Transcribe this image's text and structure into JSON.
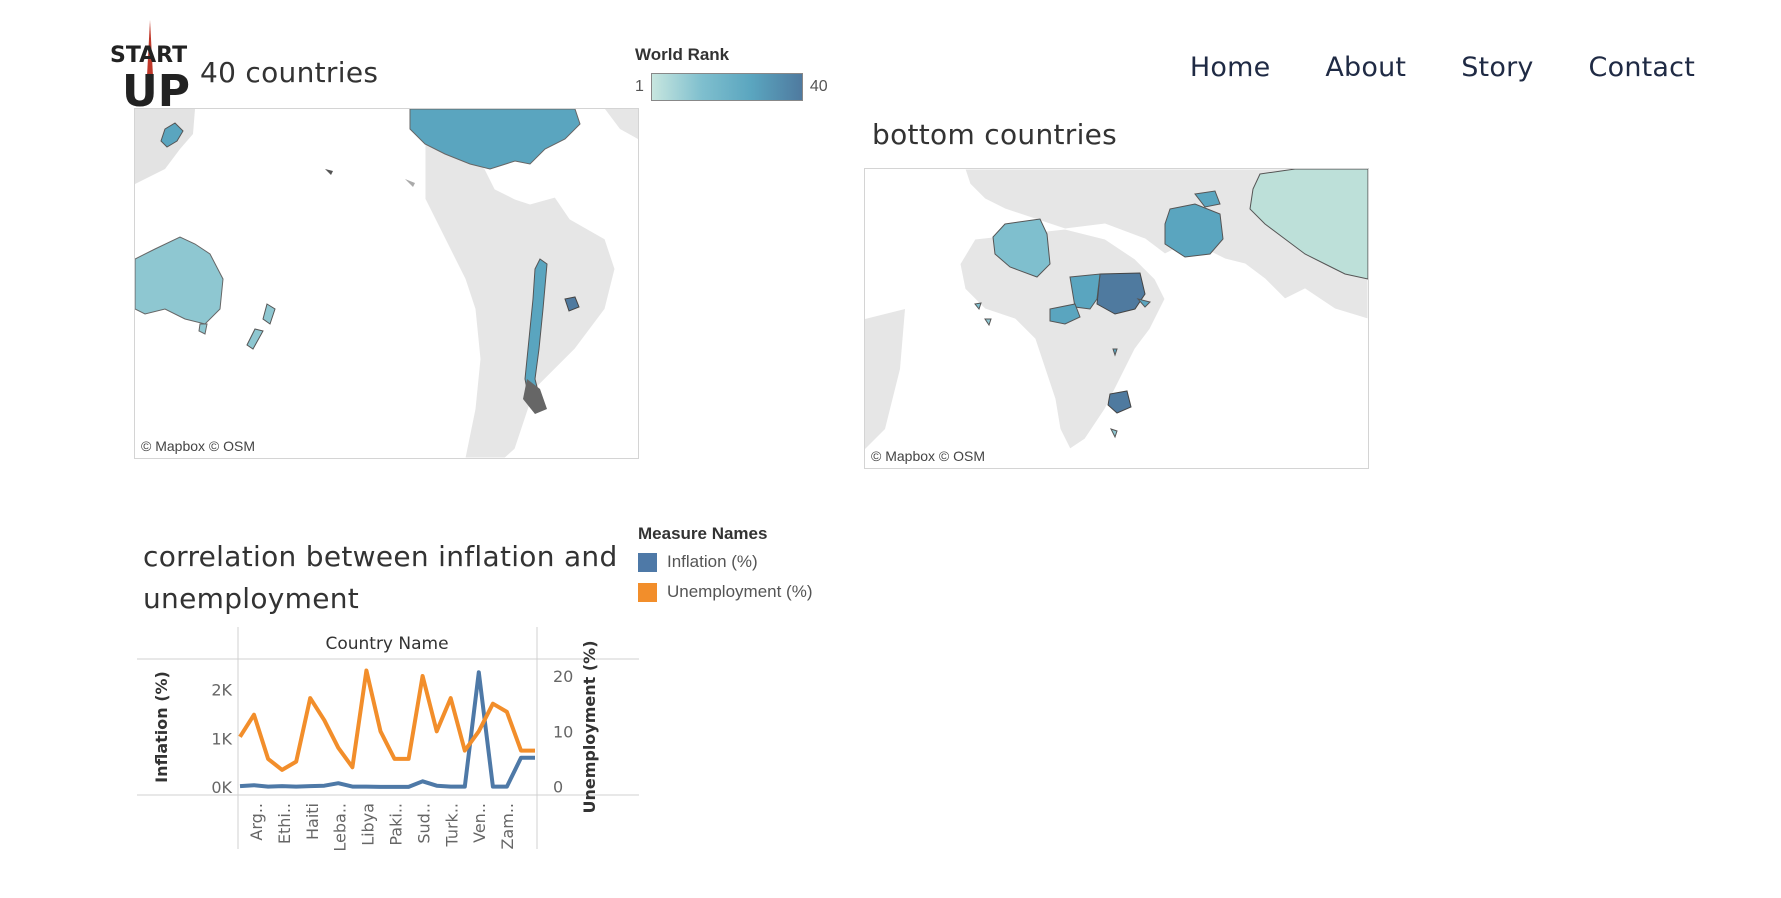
{
  "logo": {
    "text_top": "START",
    "text_bottom": "UP"
  },
  "nav": {
    "items": [
      {
        "label": "Home"
      },
      {
        "label": "About"
      },
      {
        "label": "Story"
      },
      {
        "label": "Contact"
      }
    ]
  },
  "top_map": {
    "title": "40 countries",
    "attribution": "© Mapbox  © OSM"
  },
  "bottom_map": {
    "title": "bottom countries",
    "attribution": "© Mapbox  © OSM"
  },
  "rank_legend": {
    "label": "World Rank",
    "min": "1",
    "max": "40"
  },
  "correlation": {
    "title_line1": "correlation between inflation and",
    "title_line2": "unemployment"
  },
  "measure_legend": {
    "label": "Measure Names",
    "items": [
      {
        "name": "Inflation (%)",
        "color": "#4e79a7"
      },
      {
        "name": "Unemployment (%)",
        "color": "#f28e2b"
      }
    ]
  },
  "chart_data": {
    "type": "line",
    "header": "Country Name",
    "categories": [
      "Arg..",
      "Ethi..",
      "Haiti",
      "Leba..",
      "Libya",
      "Paki..",
      "Sud..",
      "Turk..",
      "Ven..",
      "Zam.."
    ],
    "ylabel_left": "Inflation (%)",
    "ylabel_right": "Unemployment (%)",
    "yticks_left": [
      "0K",
      "1K",
      "2K"
    ],
    "yticks_right": [
      "0",
      "10",
      "20"
    ],
    "ylim_left": [
      -100,
      2500
    ],
    "ylim_right": [
      -1,
      22
    ],
    "x": [
      0,
      0.5,
      1,
      1.5,
      2,
      2.5,
      3,
      3.5,
      4,
      4.5,
      5,
      5.5,
      6,
      6.5,
      7,
      7.5,
      8,
      8.5,
      9,
      9.5,
      10,
      10.5
    ],
    "series": [
      {
        "name": "Inflation (%)",
        "axis": "left",
        "color": "#4e79a7",
        "values": [
          20,
          40,
          10,
          20,
          10,
          20,
          30,
          80,
          10,
          10,
          5,
          5,
          5,
          120,
          30,
          10,
          10,
          2350,
          10,
          10,
          600,
          600
        ]
      },
      {
        "name": "Unemployment (%)",
        "axis": "right",
        "color": "#f28e2b",
        "values": [
          9,
          13,
          5,
          3,
          4.5,
          16,
          12,
          7,
          3.5,
          21,
          10,
          5,
          5,
          20,
          10,
          16,
          6.5,
          10,
          15,
          13.5,
          6.5,
          6.5
        ]
      }
    ]
  }
}
